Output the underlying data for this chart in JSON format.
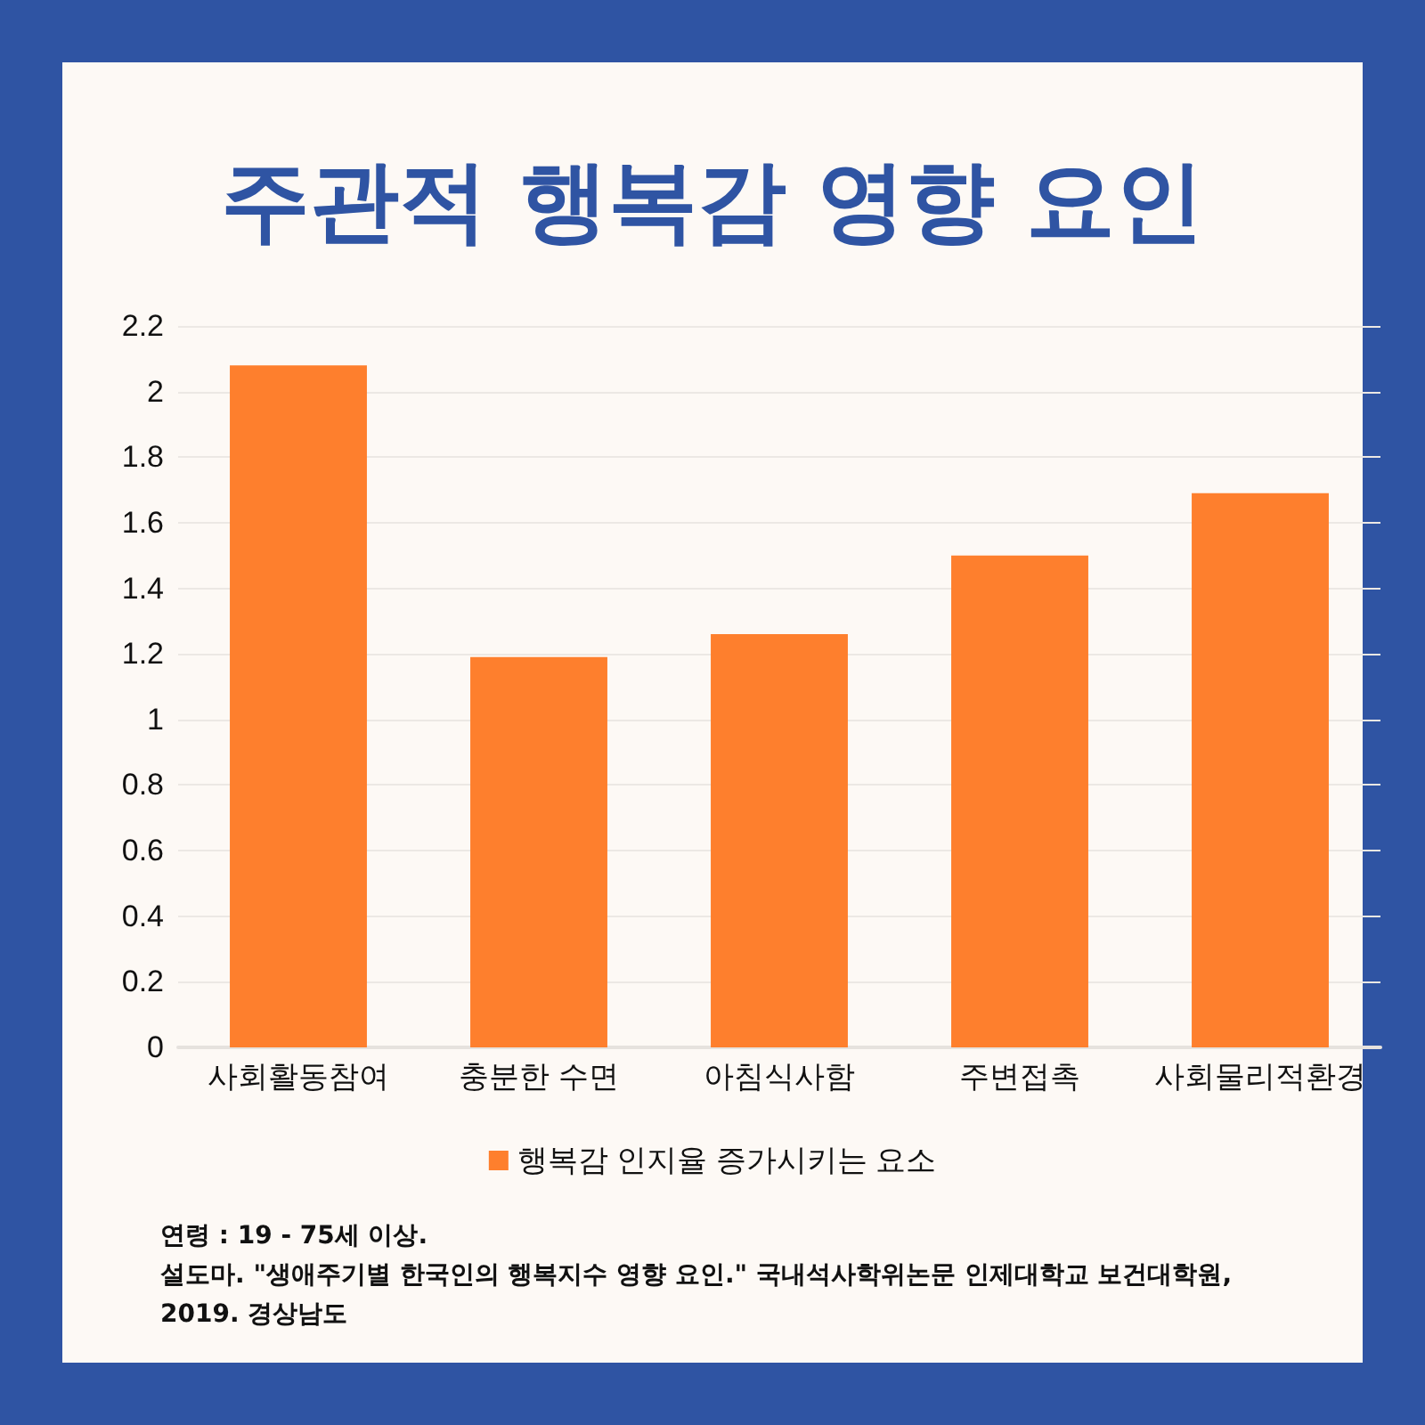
{
  "chart_data": {
    "type": "bar",
    "title": "주관적 행복감 영향 요인",
    "categories": [
      "사회활동참여",
      "충분한 수면",
      "아침식사함",
      "주변접촉",
      "사회물리적환경"
    ],
    "series": [
      {
        "name": "행복감 인지율 증가시키는 요소",
        "color": "#fe7f2d",
        "values": [
          2.08,
          1.19,
          1.26,
          1.5,
          1.69
        ]
      }
    ],
    "ylim": [
      0,
      2.2
    ],
    "yticks": [
      0,
      0.2,
      0.4,
      0.6,
      0.8,
      1,
      1.2,
      1.4,
      1.6,
      1.8,
      2,
      2.2
    ],
    "grid": "y",
    "legend": "bottom",
    "annotations": [
      "연령 : 19 - 75세 이상.",
      "설도마. \"생애주기별 한국인의 행복지수 영향 요인.\" 국내석사학위논문 인제대학교 보건대학원, 2019. 경상남도"
    ]
  }
}
